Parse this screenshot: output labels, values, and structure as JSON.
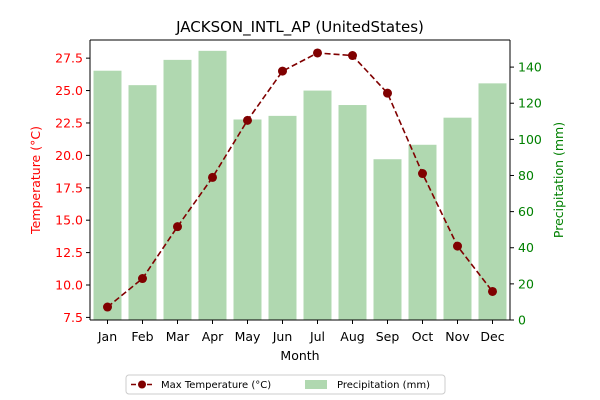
{
  "chart_data": {
    "type": "bar+line",
    "title": "JACKSON_INTL_AP (UnitedStates)",
    "xlabel": "Month",
    "categories": [
      "Jan",
      "Feb",
      "Mar",
      "Apr",
      "May",
      "Jun",
      "Jul",
      "Aug",
      "Sep",
      "Oct",
      "Nov",
      "Dec"
    ],
    "left_axis": {
      "label": "Temperature (°C)",
      "color": "#ff0000",
      "ylim": [
        7.3,
        28.9
      ],
      "ticks": [
        "7.5",
        "10.0",
        "12.5",
        "15.0",
        "17.5",
        "20.0",
        "22.5",
        "25.0",
        "27.5"
      ]
    },
    "right_axis": {
      "label": "Precipitation (mm)",
      "color": "#008000",
      "ylim": [
        0,
        155
      ],
      "ticks": [
        "0",
        "20",
        "40",
        "60",
        "80",
        "100",
        "120",
        "140"
      ]
    },
    "series": [
      {
        "name": "Max Temperature (°C)",
        "type": "line",
        "axis": "left",
        "color": "#800000",
        "style": "dashed",
        "marker": "circle",
        "values": [
          8.3,
          10.5,
          14.5,
          18.3,
          22.7,
          26.5,
          27.9,
          27.7,
          24.8,
          18.6,
          13.0,
          9.5
        ]
      },
      {
        "name": "Precipitation (mm)",
        "type": "bar",
        "axis": "right",
        "color": "#b0d8b0",
        "values": [
          138,
          130,
          144,
          149,
          111,
          113,
          127,
          119,
          89,
          97,
          112,
          131
        ]
      }
    ],
    "legend": "bottom-center",
    "grid": false
  }
}
